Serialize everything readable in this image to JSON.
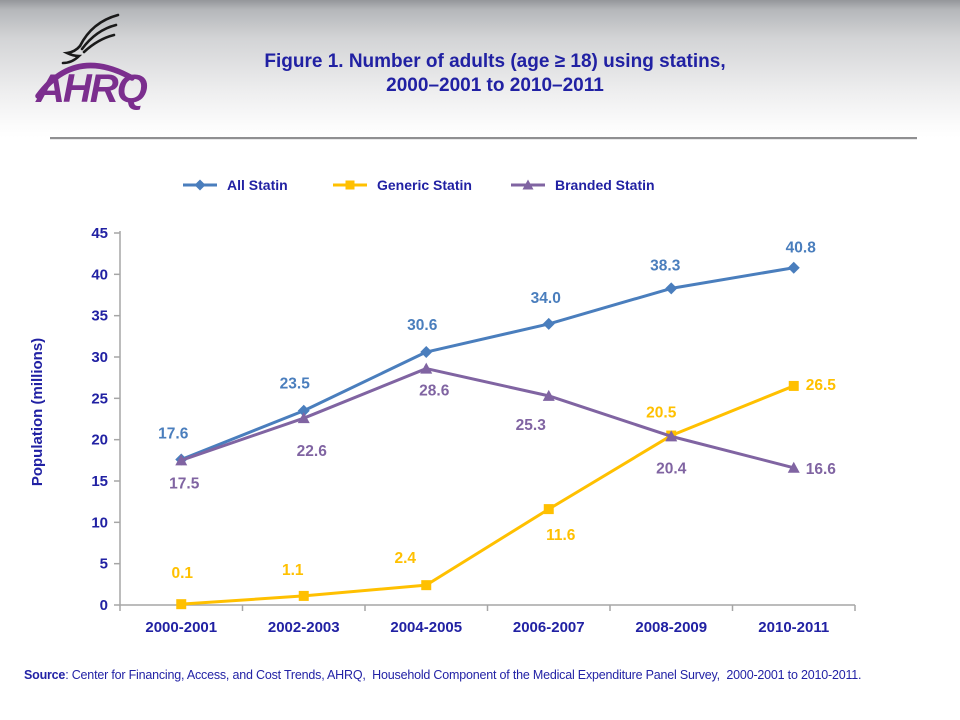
{
  "header": {
    "title_line1": "Figure 1. Number of adults (age ≥ 18) using statins,",
    "title_line2": "2000–2001 to 2010–2011",
    "logo_text": "AHRQ"
  },
  "chart_data": {
    "type": "line",
    "categories": [
      "2000-2001",
      "2002-2003",
      "2004-2005",
      "2006-2007",
      "2008-2009",
      "2010-2011"
    ],
    "series": [
      {
        "name": "All Statin",
        "marker": "diamond",
        "color": "#4A7EBD",
        "values": [
          17.6,
          23.5,
          30.6,
          34.0,
          38.3,
          40.8
        ],
        "labels": [
          "17.6",
          "23.5",
          "30.6",
          "34.0",
          "38.3",
          "40.8"
        ]
      },
      {
        "name": "Generic Statin",
        "marker": "square",
        "color": "#FFC000",
        "values": [
          0.1,
          1.1,
          2.4,
          11.6,
          20.5,
          26.5
        ],
        "labels": [
          "0.1",
          "1.1",
          "2.4",
          "11.6",
          "20.5",
          "26.5"
        ]
      },
      {
        "name": "Branded Statin",
        "marker": "triangle",
        "color": "#8064A2",
        "values": [
          17.5,
          22.6,
          28.6,
          25.3,
          20.4,
          16.6
        ],
        "labels": [
          "17.5",
          "22.6",
          "28.6",
          "25.3",
          "20.4",
          "16.6"
        ]
      }
    ],
    "title": "Figure 1. Number of adults (age ≥ 18) using statins, 2000–2001 to 2010–2011",
    "xlabel": "",
    "ylabel": "Population (millions)",
    "ylim": [
      0,
      45
    ],
    "ytick_step": 5,
    "yticks": [
      "0",
      "5",
      "10",
      "15",
      "20",
      "25",
      "30",
      "35",
      "40",
      "45"
    ],
    "grid": false,
    "legend_position": "top"
  },
  "footer": {
    "source_label": "Source",
    "source_text": ": Center for Financing, Access, and Cost Trends, AHRQ,  Household Component of the Medical Expenditure Panel Survey,  2000-2001 to 2010-2011."
  },
  "colors": {
    "text_navy": "#2121a3",
    "axis_gray": "#A6A6A6",
    "logo_purple": "#7B2E8E",
    "eagle_black": "#1a1a1a"
  }
}
